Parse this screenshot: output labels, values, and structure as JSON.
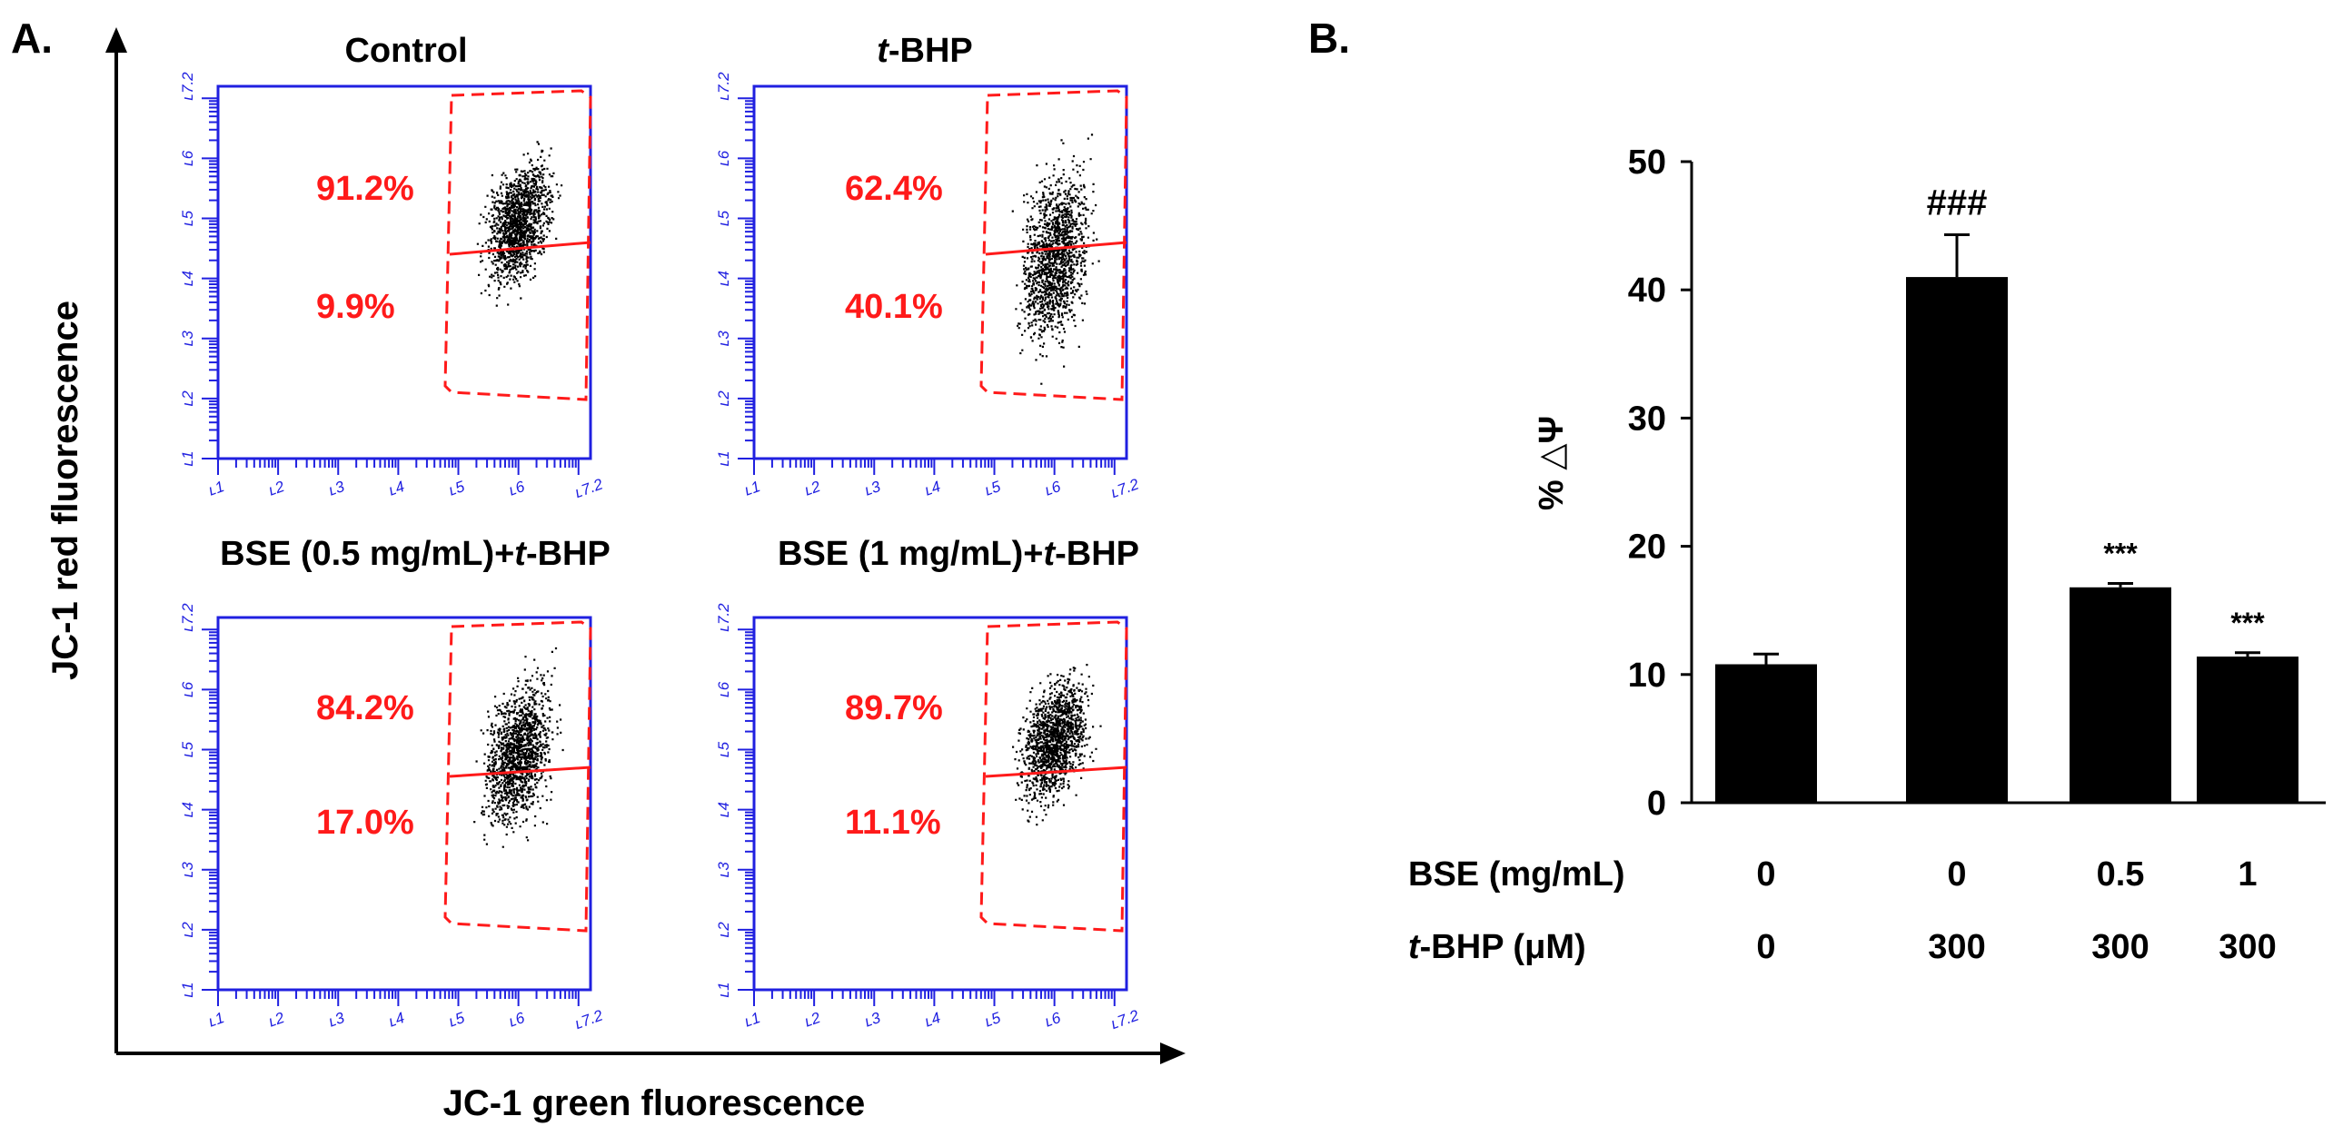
{
  "panel_a": {
    "label": "A.",
    "y_axis_title": "JC-1 red fluorescence",
    "x_axis_title": "JC-1 green fluorescence",
    "tick_labels": [
      "10^1",
      "10^2",
      "10^3",
      "10^4",
      "10^5",
      "10^6",
      "10^7.2"
    ],
    "tick_display": [
      "ʟ1",
      "ʟ2",
      "ʟ3",
      "ʟ4",
      "ʟ5",
      "ʟ6",
      "ʟ7.2"
    ],
    "plots": [
      {
        "title_prefix": "",
        "title_italic": "",
        "title_suffix": "Control",
        "upper_pct": "91.2%",
        "lower_pct": "9.9%"
      },
      {
        "title_prefix": "",
        "title_italic": "t",
        "title_suffix": "-BHP",
        "upper_pct": "62.4%",
        "lower_pct": "40.1%"
      },
      {
        "title_prefix": "BSE (0.5 mg/mL)+",
        "title_italic": "t",
        "title_suffix": "-BHP",
        "upper_pct": "84.2%",
        "lower_pct": "17.0%"
      },
      {
        "title_prefix": "BSE (1 mg/mL)+",
        "title_italic": "t",
        "title_suffix": "-BHP",
        "upper_pct": "89.7%",
        "lower_pct": "11.1%"
      }
    ]
  },
  "panel_b": {
    "label": "B.",
    "row_labels": {
      "bse": "BSE (mg/mL)",
      "tbhp_italic": "t",
      "tbhp_rest": "-BHP (μM)"
    },
    "bse_values": [
      "0",
      "0",
      "0.5",
      "1"
    ],
    "tbhp_values": [
      "0",
      "300",
      "300",
      "300"
    ]
  },
  "chart_data": {
    "type": "bar",
    "ylabel": "% △Ψ",
    "ylim": [
      0,
      50
    ],
    "yticks": [
      0,
      10,
      20,
      30,
      40,
      50
    ],
    "categories": [
      "BSE 0 / t-BHP 0",
      "BSE 0 / t-BHP 300",
      "BSE 0.5 / t-BHP 300",
      "BSE 1 / t-BHP 300"
    ],
    "values": [
      10.8,
      41.0,
      16.8,
      11.4
    ],
    "errors": [
      0.8,
      3.3,
      0.3,
      0.3
    ],
    "annotations": [
      "",
      "###",
      "***",
      "***"
    ],
    "bar_color": "#000000"
  }
}
